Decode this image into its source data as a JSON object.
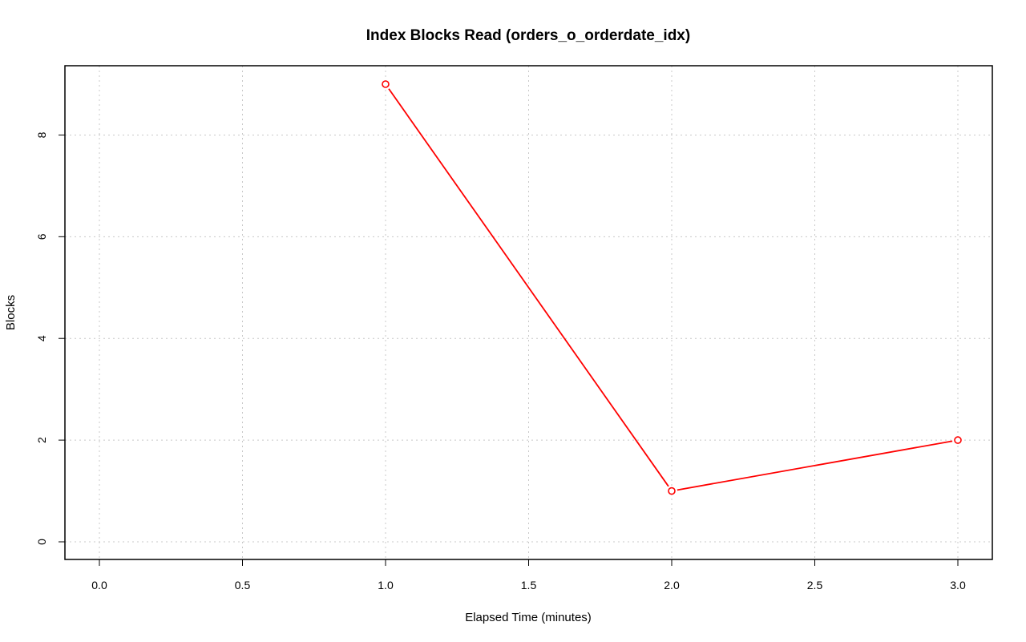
{
  "chart_data": {
    "type": "line",
    "title": "Index Blocks Read (orders_o_orderdate_idx)",
    "xlabel": "Elapsed Time (minutes)",
    "ylabel": "Blocks",
    "x": [
      1.0,
      2.0,
      3.0
    ],
    "series": [
      {
        "values": [
          9,
          1,
          2
        ],
        "color": "#ff0000"
      }
    ],
    "xlim": [
      0.0,
      3.0
    ],
    "ylim": [
      0,
      9
    ],
    "x_ticks": [
      "0.0",
      "0.5",
      "1.0",
      "1.5",
      "2.0",
      "2.5",
      "3.0"
    ],
    "y_ticks": [
      "0",
      "2",
      "4",
      "6",
      "8"
    ],
    "grid": true,
    "legend": "none"
  }
}
